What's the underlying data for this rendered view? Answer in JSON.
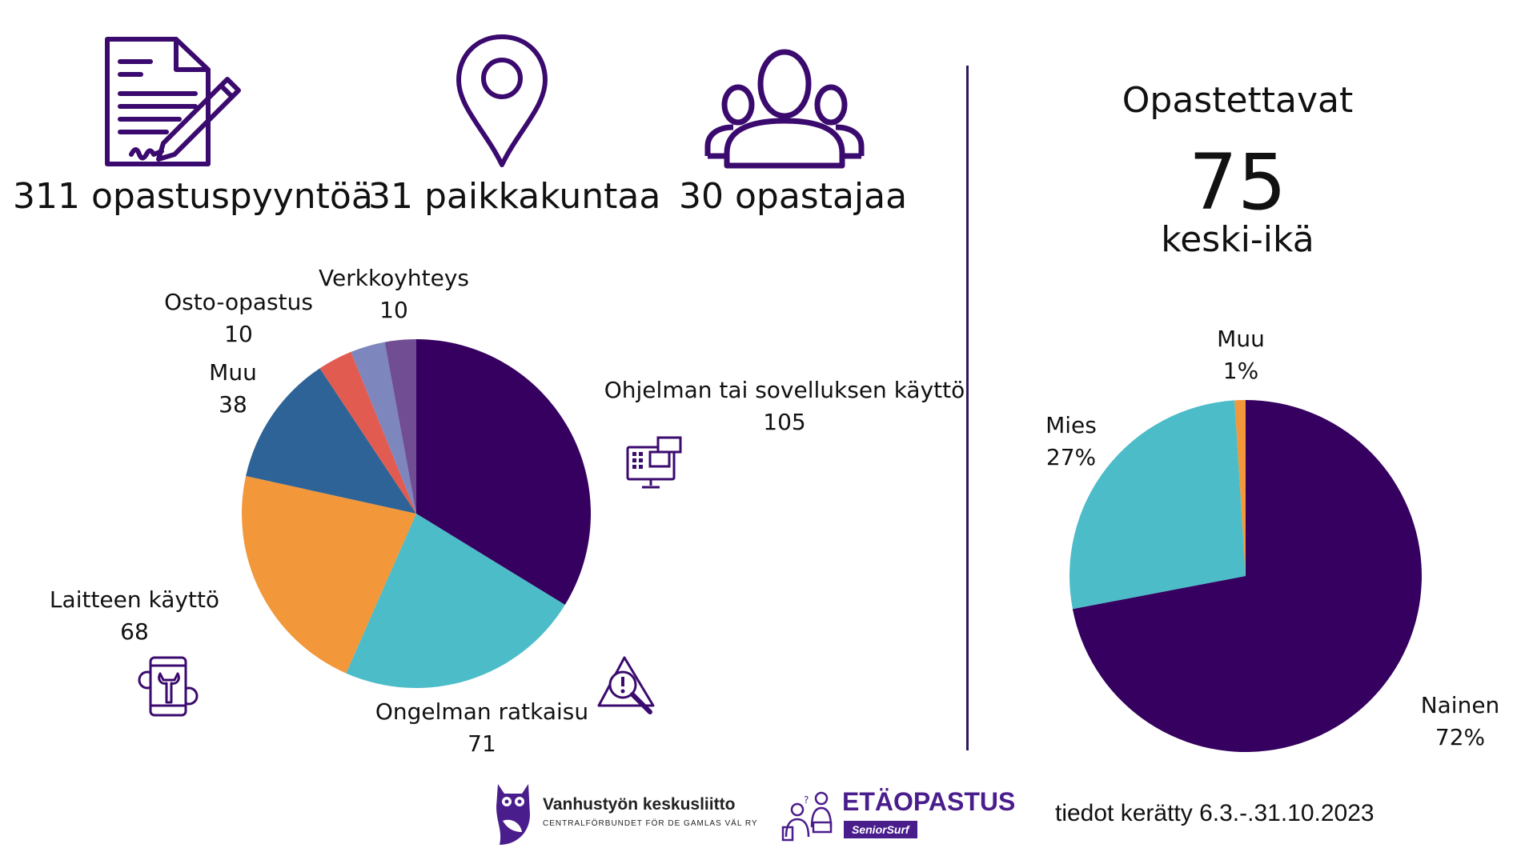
{
  "stats": [
    {
      "label": "311 opastuspyyntöä",
      "icon": "document-signature-icon"
    },
    {
      "label": "31 paikkakuntaa",
      "icon": "location-pin-icon"
    },
    {
      "label": "30 opastajaa",
      "icon": "people-group-icon"
    }
  ],
  "right_panel": {
    "title": "Opastettavat",
    "average_age": "75",
    "average_age_label": "keski-ikä"
  },
  "chart_data": [
    {
      "type": "pie",
      "title": "",
      "slices": [
        {
          "label": "Ohjelman tai sovelluksen käyttö",
          "value": 105,
          "value_text": "105",
          "color": "#35005f"
        },
        {
          "label": "Ongelman ratkaisu",
          "value": 71,
          "value_text": "71",
          "color": "#4bbcc8"
        },
        {
          "label": "Laitteen käyttö",
          "value": 68,
          "value_text": "68",
          "color": "#f2973a"
        },
        {
          "label": "Muu",
          "value": 38,
          "value_text": "38",
          "color": "#2d6396"
        },
        {
          "label": "Osto-opastus",
          "value": 10,
          "value_text": "10",
          "color": "#e15b50"
        },
        {
          "label": "Verkkoyhteys",
          "value": 10,
          "value_text": "10",
          "color": "#7d86bd"
        }
      ],
      "remainder_value": 9,
      "remainder_color": "#714e93"
    },
    {
      "type": "pie",
      "title": "Opastettavat",
      "slices": [
        {
          "label": "Nainen",
          "value": 72,
          "value_text": "72%",
          "color": "#35005f"
        },
        {
          "label": "Mies",
          "value": 27,
          "value_text": "27%",
          "color": "#4bbcc8"
        },
        {
          "label": "Muu",
          "value": 1,
          "value_text": "1%",
          "color": "#f2973a"
        }
      ]
    }
  ],
  "footer": {
    "org_name": "Vanhustyön keskusliitto",
    "org_subtitle": "CENTRALFÖRBUNDET FÖR DE GAMLAS VÄL RY",
    "service_name": "ETÄOPASTUS",
    "service_badge": "SeniorSurf",
    "collected_note": "tiedot kerätty 6.3.-.31.10.2023",
    "brand_color": "#4a1d8c"
  }
}
